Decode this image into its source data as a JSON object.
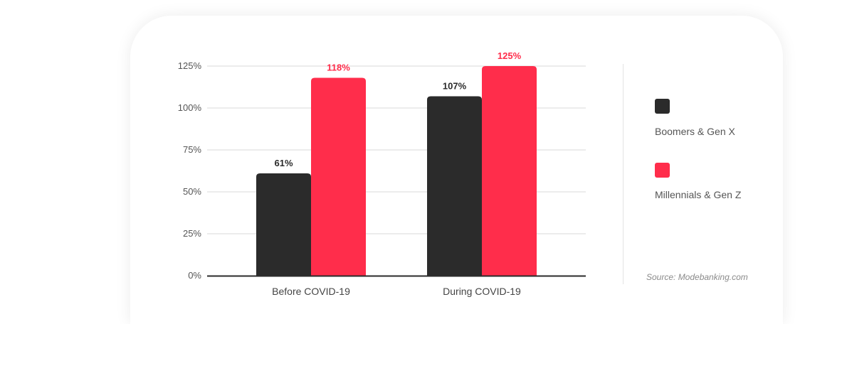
{
  "chart_data": {
    "type": "bar",
    "categories": [
      "Before COVID-19",
      "During COVID-19"
    ],
    "series": [
      {
        "name": "Boomers & Gen X",
        "values": [
          61,
          107
        ],
        "color": "#2b2b2b",
        "labels": [
          "61%",
          "107%"
        ]
      },
      {
        "name": "Millennials & Gen Z",
        "values": [
          118,
          125
        ],
        "color": "#ff2d4b",
        "labels": [
          "118%",
          "125%"
        ]
      }
    ],
    "yticks": [
      "0%",
      "25%",
      "50%",
      "75%",
      "100%",
      "125%"
    ],
    "ytick_values": [
      0,
      25,
      50,
      75,
      100,
      125
    ],
    "ylim": [
      0,
      125
    ],
    "grid": true,
    "legend_position": "right",
    "source": "Source: Modebanking.com"
  }
}
